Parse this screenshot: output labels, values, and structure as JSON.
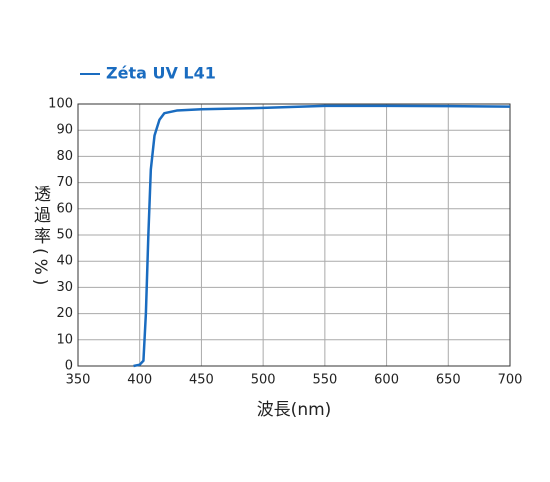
{
  "chart_data": {
    "type": "line",
    "series": [
      {
        "name": "Zéta UV L41",
        "color": "#1a6cc0",
        "values": [
          0,
          0.5,
          2,
          20,
          50,
          75,
          88,
          94,
          96.5,
          97.5,
          98,
          98.5,
          99.3,
          99.3,
          99.2,
          99
        ]
      }
    ],
    "x": [
      395,
      400,
      403,
      405,
      407,
      409,
      412,
      416,
      420,
      430,
      450,
      500,
      550,
      600,
      650,
      700
    ],
    "xlim": [
      350,
      700
    ],
    "xticks": [
      350,
      400,
      450,
      500,
      550,
      600,
      650,
      700
    ],
    "ylim": [
      0,
      100
    ],
    "yticks": [
      0,
      10,
      20,
      30,
      40,
      50,
      60,
      70,
      80,
      90,
      100
    ],
    "xlabel": "波長(nm)",
    "ylabel": "透過率(%)",
    "grid": true
  }
}
